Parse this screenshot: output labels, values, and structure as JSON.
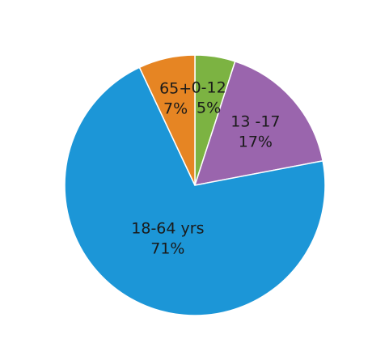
{
  "chart_data": {
    "type": "pie",
    "title": "",
    "slices": [
      {
        "category": "0-12",
        "percent_label": "5%",
        "value": 5,
        "color": "#7cb342"
      },
      {
        "category": "13 -17",
        "percent_label": "17%",
        "value": 17,
        "color": "#9a65ad"
      },
      {
        "category": "18-64 yrs",
        "percent_label": "71%",
        "value": 71,
        "color": "#1c96d7"
      },
      {
        "category": "65+",
        "percent_label": "7%",
        "value": 7,
        "color": "#e68523"
      }
    ],
    "start_angle_deg": 0,
    "direction": "clockwise",
    "legend": "none",
    "labels": "inside"
  }
}
